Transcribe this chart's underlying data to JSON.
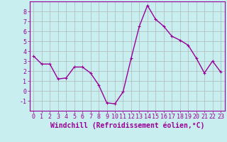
{
  "x": [
    0,
    1,
    2,
    3,
    4,
    5,
    6,
    7,
    8,
    9,
    10,
    11,
    12,
    13,
    14,
    15,
    16,
    17,
    18,
    19,
    20,
    21,
    22,
    23
  ],
  "y": [
    3.5,
    2.7,
    2.7,
    1.2,
    1.3,
    2.4,
    2.4,
    1.8,
    0.6,
    -1.2,
    -1.3,
    -0.1,
    3.3,
    6.5,
    8.6,
    7.2,
    6.5,
    5.5,
    5.1,
    4.6,
    3.3,
    1.8,
    3.0,
    1.9
  ],
  "line_color": "#990099",
  "marker": "+",
  "marker_color": "#990099",
  "bg_color": "#c8eef0",
  "grid_color": "#b0b8b8",
  "xlabel": "Windchill (Refroidissement éolien,°C)",
  "xlim": [
    -0.5,
    23.5
  ],
  "ylim": [
    -2,
    9
  ],
  "yticks": [
    -1,
    0,
    1,
    2,
    3,
    4,
    5,
    6,
    7,
    8
  ],
  "xticks": [
    0,
    1,
    2,
    3,
    4,
    5,
    6,
    7,
    8,
    9,
    10,
    11,
    12,
    13,
    14,
    15,
    16,
    17,
    18,
    19,
    20,
    21,
    22,
    23
  ],
  "tick_color": "#990099",
  "label_color": "#990099",
  "tick_fontsize": 6.0,
  "xlabel_fontsize": 7.0,
  "linewidth": 1.0,
  "markersize": 3.0
}
